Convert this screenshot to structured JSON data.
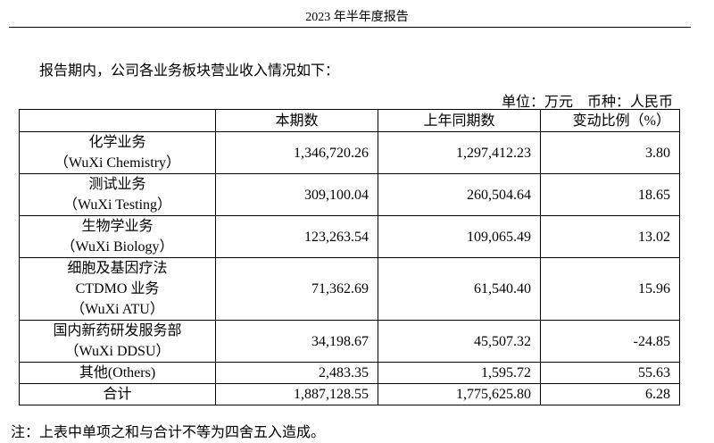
{
  "header": {
    "title": "2023 年半年度报告"
  },
  "intro": "报告期内，公司各业务板块营业收入情况如下：",
  "unit_line": "单位：万元　币种：人民币",
  "table": {
    "columns": [
      "",
      "本期数",
      "上年同期数",
      "变动比例（%）"
    ],
    "rows": [
      {
        "name_lines": [
          "化学业务",
          "（WuXi Chemistry）"
        ],
        "current": "1,346,720.26",
        "prior": "1,297,412.23",
        "change": "3.80"
      },
      {
        "name_lines": [
          "测试业务",
          "（WuXi Testing）"
        ],
        "current": "309,100.04",
        "prior": "260,504.64",
        "change": "18.65"
      },
      {
        "name_lines": [
          "生物学业务",
          "（WuXi Biology）"
        ],
        "current": "123,263.54",
        "prior": "109,065.49",
        "change": "13.02"
      },
      {
        "name_lines": [
          "细胞及基因疗法",
          "CTDMO 业务",
          "（WuXi ATU）"
        ],
        "current": "71,362.69",
        "prior": "61,540.40",
        "change": "15.96"
      },
      {
        "name_lines": [
          "国内新药研发服务部",
          "（WuXi DDSU）"
        ],
        "current": "34,198.67",
        "prior": "45,507.32",
        "change": "-24.85"
      },
      {
        "name_lines": [
          "其他(Others)"
        ],
        "current": "2,483.35",
        "prior": "1,595.72",
        "change": "55.63"
      },
      {
        "name_lines": [
          "合计"
        ],
        "current": "1,887,128.55",
        "prior": "1,775,625.80",
        "change": "6.28"
      }
    ]
  },
  "note": "注：上表中单项之和与合计不等为四舍五入造成。"
}
